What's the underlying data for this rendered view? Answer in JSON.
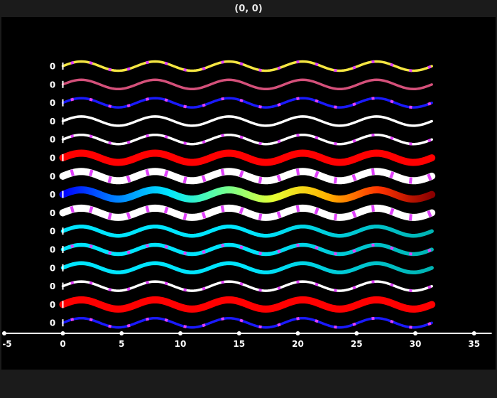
{
  "window": {
    "title": "(0, 0)"
  },
  "chart_data": {
    "type": "line",
    "title": "",
    "xlabel": "",
    "ylabel": "",
    "xlim": [
      -5,
      36.5
    ],
    "x_ticks": [
      -5,
      0,
      5,
      10,
      15,
      20,
      25,
      30,
      35
    ],
    "y_tick_label": "0",
    "x_range": [
      0,
      31.4
    ],
    "function": "sin",
    "period": 6.283,
    "grid": false,
    "legend": "none",
    "axis_color": "#ffffff",
    "marker_color": "#e040fb",
    "series": [
      {
        "values_shown_as": "sine",
        "amplitude": 0.6,
        "color": "#f5e642",
        "width": "thin",
        "markers": true
      },
      {
        "values_shown_as": "sine",
        "amplitude": 0.6,
        "color": "#d4507a",
        "width": "thin",
        "markers": false
      },
      {
        "values_shown_as": "sine",
        "amplitude": 0.6,
        "color": "#1a1aff",
        "width": "thin",
        "markers": true
      },
      {
        "values_shown_as": "sine",
        "amplitude": 0.6,
        "color": "#ffffff",
        "width": "thin",
        "markers": false
      },
      {
        "values_shown_as": "sine",
        "amplitude": 0.6,
        "color": "#ffffff",
        "width": "thin",
        "markers": true
      },
      {
        "values_shown_as": "sine",
        "amplitude": 0.6,
        "color": "#ff0000",
        "width": "thick",
        "markers": false
      },
      {
        "values_shown_as": "sine",
        "amplitude": 0.6,
        "color": "#ffffff",
        "width": "thick",
        "markers": true
      },
      {
        "values_shown_as": "sine",
        "amplitude": 0.6,
        "color": "gradient",
        "gradient": [
          "#0000ff",
          "#0080ff",
          "#00e5ff",
          "#66ff99",
          "#e6ff33",
          "#ffb300",
          "#ff3300",
          "#8b0000"
        ],
        "width": "thick",
        "markers": false
      },
      {
        "values_shown_as": "sine",
        "amplitude": 0.6,
        "color": "#ffffff",
        "width": "thick",
        "markers": true
      },
      {
        "values_shown_as": "sine",
        "amplitude": 0.6,
        "color": "#00e5ff",
        "color_end": "#00b3b3",
        "width": "medium",
        "markers": false
      },
      {
        "values_shown_as": "sine",
        "amplitude": 0.6,
        "color": "#00e5ff",
        "color_end": "#00b3b3",
        "width": "medium",
        "markers": true
      },
      {
        "values_shown_as": "sine",
        "amplitude": 0.6,
        "color": "#00e5ff",
        "color_end": "#00b3b3",
        "width": "medium",
        "markers": false
      },
      {
        "values_shown_as": "sine",
        "amplitude": 0.6,
        "color": "#ffffff",
        "width": "thin",
        "markers": true
      },
      {
        "values_shown_as": "sine",
        "amplitude": 0.6,
        "color": "#ff0000",
        "width": "thick",
        "markers": false
      },
      {
        "values_shown_as": "sine",
        "amplitude": 0.6,
        "color": "#1a1aff",
        "width": "thin",
        "markers": true
      }
    ]
  }
}
